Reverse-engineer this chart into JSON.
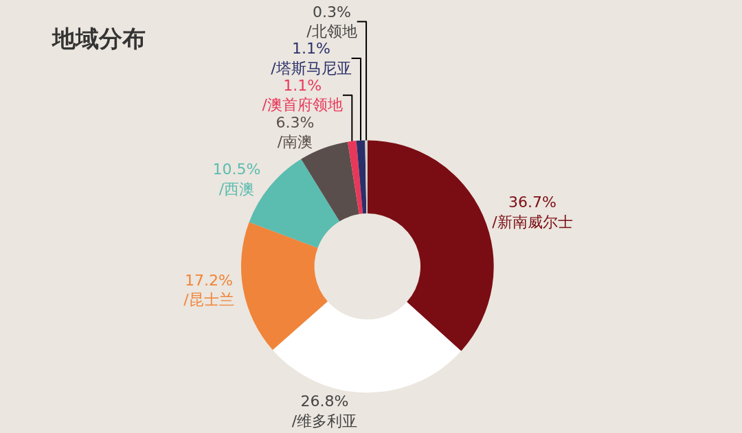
{
  "chart_data": {
    "type": "donut",
    "title": "地域分布",
    "categories": [
      "/新南威尔士",
      "/维多利亚",
      "/昆士兰",
      "/西澳",
      "/南澳",
      "/澳首府领地",
      "/塔斯马尼亚",
      "/北领地"
    ],
    "values": [
      36.7,
      26.8,
      17.2,
      10.5,
      6.3,
      1.1,
      1.1,
      0.3
    ],
    "value_labels": [
      "36.7%",
      "26.8%",
      "17.2%",
      "10.5%",
      "6.3%",
      "1.1%",
      "1.1%",
      "0.3%"
    ],
    "colors": [
      "#7a0d14",
      "#ffffff",
      "#f0843a",
      "#5bbcb0",
      "#5a4e4c",
      "#e8385a",
      "#2a2f6a",
      "#d6d1c9"
    ],
    "legend": false
  }
}
